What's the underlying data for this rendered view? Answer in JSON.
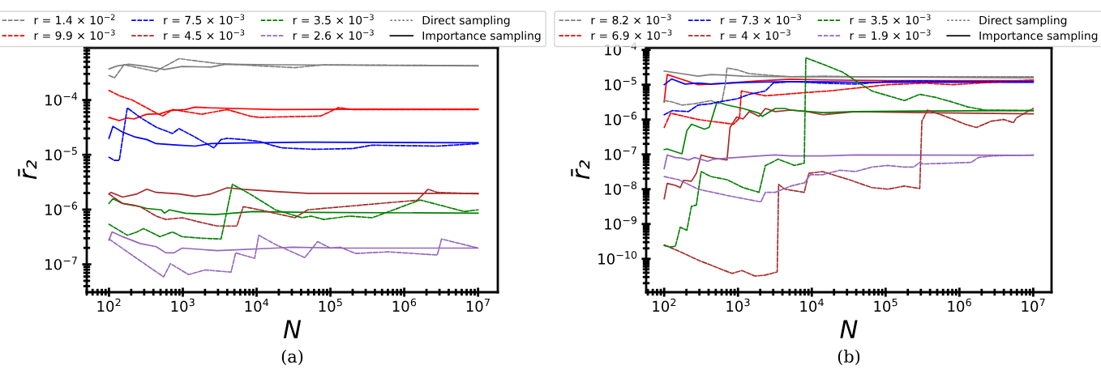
{
  "chart_data": [
    {
      "type": "line",
      "xlabel": "N",
      "ylabel": "r̄₂",
      "log": "xy",
      "legend": "top",
      "annotations": [
        "(a)"
      ],
      "xlim": [
        50,
        18500000
      ],
      "ylim": [
        3.1e-08,
        0.0009
      ],
      "xticks": [
        {
          "value": 100,
          "label": "10$^{2}$"
        },
        {
          "value": 1000,
          "label": "10$^{3}$"
        },
        {
          "value": 10000,
          "label": "10$^{4}$"
        },
        {
          "value": 100000,
          "label": "10$^{5}$"
        },
        {
          "value": 1000000,
          "label": "10$^{6}$"
        },
        {
          "value": 10000000,
          "label": "10$^{7}$"
        }
      ],
      "yticks": [
        {
          "value": 1e-07,
          "label": "10$^{−7}$"
        },
        {
          "value": 1e-06,
          "label": "10$^{−6}$"
        },
        {
          "value": 1e-05,
          "label": "10$^{−5}$"
        },
        {
          "value": 0.0001,
          "label": "10$^{−4}$"
        }
      ],
      "series": [
        {
          "name": "r = 1.4 × 10$^{−2}$",
          "color": "#7f7f7f",
          "line_style": "dashed",
          "x": [
            100,
            119,
            160,
            325,
            436,
            510,
            890,
            1330,
            2950,
            11000,
            33000,
            81000,
            10000000
          ],
          "values": [
            0.00028,
            0.000255,
            0.00044,
            0.00036,
            0.00033,
            0.00038,
            0.00057,
            0.00053,
            0.000465,
            0.00042,
            0.00039,
            0.00044,
            0.000425
          ]
        },
        {
          "color": "#7f7f7f",
          "line_style": "solid",
          "x": [
            100,
            131,
            186,
            325,
            565,
            980,
            2400,
            3800,
            18000,
            10000000
          ],
          "values": [
            0.00037,
            0.00042,
            0.00045,
            0.00041,
            0.00036,
            0.00041,
            0.0004,
            0.00045,
            0.00044,
            0.00042
          ]
        },
        {
          "name": "r = 9.9 × 10$^{−3}$",
          "color": "#ff0000",
          "line_style": "dashed",
          "x": [
            100,
            138,
            206,
            325,
            436,
            535,
            725,
            980,
            1790,
            4000,
            8100,
            11000,
            18000,
            74000,
            130000,
            200000,
            10000000
          ],
          "values": [
            0.00015,
            0.00012,
            0.0001,
            7.2e-05,
            5.8e-05,
            5.1e-05,
            6.7e-05,
            6.3e-05,
            5.5e-05,
            6.7e-05,
            5.1e-05,
            4.8e-05,
            4.9e-05,
            5.1e-05,
            7.3e-05,
            6.7e-05,
            6.7e-05
          ]
        },
        {
          "color": "#ff0000",
          "line_style": "solid",
          "x": [
            100,
            138,
            177,
            218,
            325,
            490,
            660,
            1080,
            1470,
            2400,
            18000,
            370000,
            10000000
          ],
          "values": [
            4.8e-05,
            4.2e-05,
            4.7e-05,
            4.5e-05,
            5.5e-05,
            5.6e-05,
            6.4e-05,
            6.7e-05,
            7.4e-05,
            7.2e-05,
            6.7e-05,
            6.8e-05,
            6.8e-05
          ]
        },
        {
          "name": "r = 7.5 × 10$^{−3}$",
          "color": "#0000ff",
          "line_style": "dashed",
          "x": [
            100,
            119,
            138,
            177,
            265,
            436,
            725,
            890,
            1470,
            2630,
            3300,
            4000,
            6600,
            11000,
            16000,
            22000,
            60000,
            200000,
            370000,
            2800000,
            10000000
          ],
          "values": [
            9e-06,
            7.9e-06,
            7.9e-06,
            7.2e-05,
            4.8e-05,
            3.2e-05,
            2.45e-05,
            3e-05,
            2.1e-05,
            1.34e-05,
            1.9e-05,
            2e-05,
            1.9e-05,
            1.75e-05,
            1.5e-05,
            1.34e-05,
            1.26e-05,
            1.3e-05,
            1.5e-05,
            1.44e-05,
            1.6e-05
          ]
        },
        {
          "color": "#0000ff",
          "line_style": "solid",
          "x": [
            100,
            113,
            153,
            229,
            325,
            436,
            890,
            1470,
            2400,
            6600,
            49000,
            10000000
          ],
          "values": [
            2e-05,
            3.3e-05,
            2.6e-05,
            2.1e-05,
            1.9e-05,
            1.6e-05,
            1.5e-05,
            1.44e-05,
            1.6e-05,
            1.64e-05,
            1.7e-05,
            1.66e-05
          ]
        },
        {
          "name": "r = 4.5 × 10$^{−3}$",
          "color": "#a52a2a",
          "line_style": "dashed",
          "x": [
            100,
            153,
            265,
            436,
            590,
            980,
            1790,
            2950,
            5400,
            6600,
            11000,
            33000,
            49000,
            460000,
            1500000,
            2100000,
            2800000,
            10000000
          ],
          "values": [
            1.93e-06,
            1.29e-06,
            1.13e-06,
            7.6e-07,
            6.6e-07,
            7.1e-07,
            5.8e-07,
            5e-07,
            5e-07,
            1.13e-06,
            9.9e-07,
            7.1e-07,
            9.9e-07,
            1.29e-06,
            1.48e-06,
            2.35e-06,
            2.06e-06,
            1.93e-06
          ]
        },
        {
          "color": "#a52a2a",
          "line_style": "solid",
          "x": [
            100,
            107,
            153,
            240,
            325,
            436,
            890,
            1470,
            2400,
            4000,
            6600,
            18000,
            49000,
            10000000
          ],
          "values": [
            1.93e-06,
            2.06e-06,
            1.69e-06,
            1.93e-06,
            2.35e-06,
            2.06e-06,
            1.93e-06,
            1.74e-06,
            1.93e-06,
            2.5e-06,
            2.35e-06,
            2.14e-06,
            1.98e-06,
            1.98e-06
          ]
        },
        {
          "name": "r = 3.5 × 10$^{−3}$",
          "color": "#008000",
          "line_style": "dashed",
          "x": [
            100,
            177,
            240,
            293,
            490,
            725,
            980,
            1790,
            3300,
            4700,
            8100,
            18000,
            41000,
            55000,
            81000,
            180000,
            370000,
            1600000,
            1700000,
            6500000,
            10000000
          ],
          "values": [
            5.4e-07,
            3.4e-07,
            3.9e-07,
            4.5e-07,
            3.2e-07,
            3.9e-07,
            3.2e-07,
            3e-07,
            2.9e-07,
            2.9e-06,
            1.93e-06,
            9.9e-07,
            7.1e-07,
            7.6e-07,
            6.6e-07,
            7.6e-07,
            7.1e-07,
            1.48e-06,
            1.48e-06,
            9.2e-07,
            9.9e-07
          ]
        },
        {
          "color": "#008000",
          "line_style": "solid",
          "x": [
            100,
            113,
            153,
            218,
            325,
            510,
            565,
            660,
            1080,
            2700,
            8900,
            49000,
            10000000
          ],
          "values": [
            1.29e-06,
            1.58e-06,
            1.29e-06,
            1.2e-06,
            1.05e-06,
            9.9e-07,
            8.6e-07,
            9.9e-07,
            8.6e-07,
            8.1e-07,
            9.2e-07,
            8.9e-07,
            8.6e-07
          ]
        },
        {
          "name": "r = 2.6 × 10$^{−3}$",
          "color": "#9467bd",
          "line_style": "dashed",
          "x": [
            100,
            265,
            550,
            680,
            1200,
            2000,
            4500,
            5200,
            9400,
            10700,
            18000,
            45000,
            67000,
            100000,
            135000,
            220000,
            610000,
            2800000,
            3200000,
            10000000
          ],
          "values": [
            2.9e-07,
            1.16e-07,
            5.9e-08,
            1.03e-07,
            6.5e-08,
            7.9e-08,
            7.2e-08,
            1.62e-07,
            1.29e-07,
            3.4e-07,
            2.3e-07,
            1.33e-07,
            2.6e-07,
            1.98e-07,
            2.06e-07,
            1.58e-07,
            1.69e-07,
            1.48e-07,
            2.9e-07,
            1.98e-07
          ]
        },
        {
          "color": "#9467bd",
          "line_style": "solid",
          "x": [
            100,
            110,
            153,
            265,
            436,
            590,
            760,
            980,
            2950,
            18000,
            30000,
            135000,
            10000000
          ],
          "values": [
            2.77e-07,
            3.9e-07,
            3.2e-07,
            2.4e-07,
            2.1e-07,
            1.62e-07,
            1.62e-07,
            1.98e-07,
            1.78e-07,
            1.98e-07,
            2.06e-07,
            1.98e-07,
            1.98e-07
          ]
        },
        {
          "name": "Direct sampling",
          "color": "#7f7f7f",
          "line_style": "dotted"
        },
        {
          "name": "Importance sampling",
          "color": "#000000",
          "line_style": "solid"
        }
      ]
    },
    {
      "type": "line",
      "xlabel": "N",
      "ylabel": "r̄₂",
      "log": "xy",
      "legend": "top",
      "annotations": [
        "(b)"
      ],
      "xlim": [
        57,
        17700000
      ],
      "ylim": [
        1.1e-11,
        0.000115
      ],
      "xticks": [
        {
          "value": 100,
          "label": "10$^{2}$"
        },
        {
          "value": 1000,
          "label": "10$^{3}$"
        },
        {
          "value": 10000,
          "label": "10$^{4}$"
        },
        {
          "value": 100000,
          "label": "10$^{5}$"
        },
        {
          "value": 1000000,
          "label": "10$^{6}$"
        },
        {
          "value": 10000000,
          "label": "10$^{7}$"
        }
      ],
      "yticks": [
        {
          "value": 1e-10,
          "label": "10$^{−10}$"
        },
        {
          "value": 1e-09,
          "label": "10$^{−9}$"
        },
        {
          "value": 1e-08,
          "label": "10$^{−8}$"
        },
        {
          "value": 1e-07,
          "label": "10$^{−7}$"
        },
        {
          "value": 1e-06,
          "label": "10$^{−6}$"
        },
        {
          "value": 1e-05,
          "label": "10$^{−5}$"
        },
        {
          "value": 0.0001,
          "label": "10$^{−4}$"
        }
      ],
      "series": [
        {
          "name": "r = 8.2 × 10$^{−3}$",
          "color": "#7f7f7f",
          "line_style": "dashed",
          "x": [
            100,
            128,
            174,
            259,
            350,
            430,
            550,
            610,
            670,
            710,
            960,
            1420,
            2600,
            5200,
            14000,
            39000,
            290000,
            10000000
          ],
          "values": [
            3.5e-06,
            3.2e-06,
            2.6e-06,
            2.85e-06,
            3.2e-06,
            3.5e-06,
            2.85e-06,
            3.5e-06,
            1e-05,
            3e-05,
            2.7e-05,
            2.08e-05,
            1.87e-05,
            1.69e-05,
            1.76e-05,
            1.69e-05,
            1.69e-05,
            1.69e-05
          ]
        },
        {
          "color": "#7f7f7f",
          "line_style": "solid",
          "x": [
            100,
            174,
            288,
            430,
            710,
            1170,
            5200,
            39000,
            10000000
          ],
          "values": [
            2.46e-05,
            2.08e-05,
            1.76e-05,
            1.95e-05,
            1.87e-05,
            1.76e-05,
            1.69e-05,
            1.69e-05,
            1.58e-05
          ]
        },
        {
          "name": "r = 6.9 × 10$^{−3}$",
          "color": "#ff0000",
          "line_style": "dashed",
          "x": [
            100,
            122,
            288,
            870,
            1050,
            1110,
            2350,
            7900,
            17000,
            107000,
            350000,
            790000,
            10000000
          ],
          "values": [
            5.9e-07,
            1.52e-06,
            1e-06,
            7.3e-07,
            1.11e-06,
            6.6e-06,
            4.8e-06,
            5.9e-06,
            6.6e-06,
            1e-05,
            1.11e-05,
            1e-05,
            1.37e-05
          ]
        },
        {
          "color": "#ff0000",
          "line_style": "solid",
          "x": [
            100,
            110,
            157,
            288,
            430,
            710,
            1930,
            5200,
            14000,
            107000,
            10000000
          ],
          "values": [
            3.2e-06,
            1.95e-05,
            1.52e-05,
            1e-05,
            1.04e-05,
            1.11e-05,
            1.29e-05,
            1.43e-05,
            1.37e-05,
            1.31e-05,
            1.31e-05
          ]
        },
        {
          "name": "r = 7.3 × 10$^{−3}$",
          "color": "#0000ff",
          "line_style": "dashed",
          "x": [
            100,
            128,
            213,
            288,
            430,
            550,
            960,
            1420,
            2350,
            3000,
            5200,
            14000,
            39000,
            107000,
            290000,
            790000,
            10000000
          ],
          "values": [
            1.37e-06,
            1.8e-06,
            1.69e-06,
            2.6e-06,
            2.85e-06,
            3.2e-06,
            3.9e-06,
            5.3e-06,
            6.6e-06,
            1.11e-05,
            1.23e-05,
            1.11e-05,
            1.04e-05,
            1.23e-05,
            1.29e-05,
            1.23e-05,
            1.23e-05
          ]
        },
        {
          "color": "#0000ff",
          "line_style": "solid",
          "x": [
            100,
            126,
            192,
            288,
            430,
            1170,
            5200,
            39000,
            10000000
          ],
          "values": [
            1e-05,
            1.46e-05,
            1.04e-05,
            1.11e-05,
            1.04e-05,
            1.16e-05,
            1.23e-05,
            1.18e-05,
            1.18e-05
          ]
        },
        {
          "name": "r = 4 × 10$^{−3}$",
          "color": "#a52a2a",
          "line_style": "dashed",
          "x": [
            100,
            159,
            295,
            830,
            1130,
            1700,
            2330,
            3400,
            3550,
            4300,
            7900,
            9100,
            14000,
            32000,
            65000,
            107000,
            180000,
            290000,
            310000,
            370000,
            650000,
            1200000,
            1700000,
            2700000,
            4000000,
            5400000,
            5900000,
            10000000
          ],
          "values": [
            2.5e-10,
            1.65e-10,
            9e-11,
            3.8e-11,
            4.6e-11,
            3.2e-11,
            3.4e-11,
            4.2e-11,
            1.37e-08,
            1e-08,
            8.1e-09,
            2.85e-08,
            3.2e-08,
            1.87e-08,
            1.11e-08,
            1e-08,
            1.23e-08,
            1.04e-08,
            9e-07,
            1.87e-06,
            1.23e-06,
            7.3e-07,
            5.9e-07,
            9e-07,
            1e-06,
            8.1e-07,
            1.11e-06,
            2.08e-06
          ]
        },
        {
          "color": "#a52a2a",
          "line_style": "solid",
          "x": [
            100,
            110,
            142,
            165,
            183,
            234,
            273,
            317,
            388,
            474,
            710,
            780,
            960,
            1170,
            1420,
            1930,
            2350,
            3200,
            5200,
            8700,
            14000,
            39000,
            290000,
            10000000
          ],
          "values": [
            5.3e-09,
            1.46e-08,
            1.29e-08,
            1.11e-08,
            1.8e-08,
            1.69e-08,
            2.85e-08,
            9.6e-08,
            8.5e-08,
            7.8e-08,
            6.9e-08,
            5.9e-07,
            1.18e-06,
            1.04e-06,
            1.69e-06,
            1.23e-06,
            2.08e-06,
            1.69e-06,
            1.87e-06,
            1.69e-06,
            1.37e-06,
            1.69e-06,
            1.58e-06,
            1.46e-06
          ]
        },
        {
          "name": "r = 3.5 × 10$^{−3}$",
          "color": "#008000",
          "line_style": "dashed",
          "x": [
            100,
            122,
            142,
            165,
            203,
            234,
            273,
            317,
            430,
            710,
            1170,
            1930,
            2350,
            2900,
            3500,
            5800,
            7900,
            8300,
            14000,
            26000,
            65000,
            130000,
            180000,
            290000,
            480000,
            790000,
            1300000,
            2200000,
            10000000
          ],
          "values": [
            2.4e-10,
            2.2e-10,
            2.3e-10,
            8.1e-10,
            6.6e-10,
            3.2e-09,
            3.5e-09,
            3.2e-08,
            2.3e-08,
            1.87e-08,
            1.11e-08,
            8.1e-09,
            4.8e-08,
            5.9e-08,
            7.3e-08,
            4.8e-08,
            5.6e-08,
            5.9e-05,
            3.9e-05,
            2.3e-05,
            6.6e-06,
            4.3e-06,
            3.5e-06,
            5.3e-06,
            4.3e-06,
            3.2e-06,
            2.3e-06,
            1.87e-06,
            1.8e-06
          ]
        },
        {
          "color": "#008000",
          "line_style": "solid",
          "x": [
            100,
            110,
            157,
            174,
            203,
            234,
            350,
            406,
            520,
            710,
            1170,
            1930,
            2130,
            3200,
            4300,
            5200,
            14000,
            39000,
            290000,
            10000000
          ],
          "values": [
            1.37e-07,
            1.43e-07,
            1.11e-07,
            1.04e-07,
            4.8e-07,
            7.3e-07,
            5.3e-07,
            5.9e-07,
            3.2e-06,
            2.6e-06,
            2.08e-06,
            1.52e-06,
            1.23e-06,
            2.08e-06,
            2.08e-06,
            1.87e-06,
            1.58e-06,
            1.69e-06,
            1.76e-06,
            1.8e-06
          ]
        },
        {
          "name": "r = 1.9 × 10$^{−3}$",
          "color": "#9467bd",
          "line_style": "dashed",
          "x": [
            100,
            157,
            288,
            710,
            2040,
            2350,
            3200,
            5200,
            7900,
            9600,
            14000,
            24000,
            39000,
            65000,
            107000,
            180000,
            240000,
            290000,
            320000,
            790000,
            1450000,
            1800000,
            2700000,
            10000000
          ],
          "values": [
            2.3e-08,
            1.87e-08,
            1e-08,
            6.6e-09,
            4.3e-09,
            8.1e-09,
            8.1e-09,
            1.23e-08,
            1.52e-08,
            2.6e-08,
            2.6e-08,
            3.5e-08,
            3.2e-08,
            4.3e-08,
            4.8e-08,
            4.3e-08,
            4.3e-08,
            5.9e-08,
            5.3e-08,
            5.6e-08,
            5.9e-08,
            8.1e-08,
            9e-08,
            9.6e-08
          ]
        },
        {
          "color": "#9467bd",
          "line_style": "solid",
          "x": [
            100,
            110,
            142,
            174,
            213,
            259,
            388,
            474,
            710,
            1930,
            3200,
            5200,
            14000,
            39000,
            10000000
          ],
          "values": [
            3.9e-08,
            9.6e-08,
            8.1e-08,
            7.8e-08,
            6.9e-08,
            8.1e-08,
            6.3e-08,
            7.3e-08,
            7.8e-08,
            9e-08,
            9.6e-08,
            9e-08,
            9e-08,
            9.6e-08,
            9.4e-08
          ]
        },
        {
          "name": "Direct sampling",
          "color": "#7f7f7f",
          "line_style": "dotted"
        },
        {
          "name": "Importance sampling",
          "color": "#000000",
          "line_style": "solid"
        }
      ]
    }
  ]
}
